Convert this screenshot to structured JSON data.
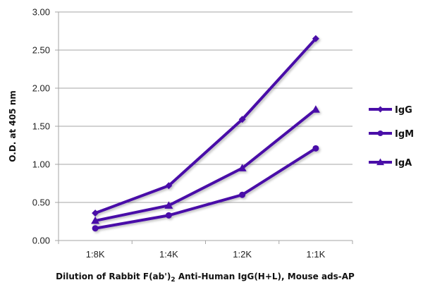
{
  "chart_data": {
    "type": "line",
    "title": "",
    "xlabel": "Dilution of Rabbit F(ab')2 Anti-Human IgG(H+L), Mouse ads-AP",
    "xlabel_parts": {
      "before_sub": "Dilution of Rabbit F(ab')",
      "sub": "2",
      "after_sub": " Anti-Human IgG(H+L), Mouse ads-AP"
    },
    "ylabel": "O.D. at 405 nm",
    "categories": [
      "1:8K",
      "1:4K",
      "1:2K",
      "1:1K"
    ],
    "ylim": [
      0,
      3
    ],
    "yticks": [
      "0.00",
      "0.50",
      "1.00",
      "1.50",
      "2.00",
      "2.50",
      "3.00"
    ],
    "grid": true,
    "legend_position": "right",
    "series": [
      {
        "name": "IgG",
        "marker": "diamond",
        "color": "#4A0FA8",
        "values": [
          0.36,
          0.72,
          1.59,
          2.65
        ]
      },
      {
        "name": "IgM",
        "marker": "circle",
        "color": "#4A0FA8",
        "values": [
          0.16,
          0.33,
          0.6,
          1.21
        ]
      },
      {
        "name": "IgA",
        "marker": "triangle",
        "color": "#4A0FA8",
        "values": [
          0.26,
          0.46,
          0.95,
          1.72
        ]
      }
    ]
  }
}
